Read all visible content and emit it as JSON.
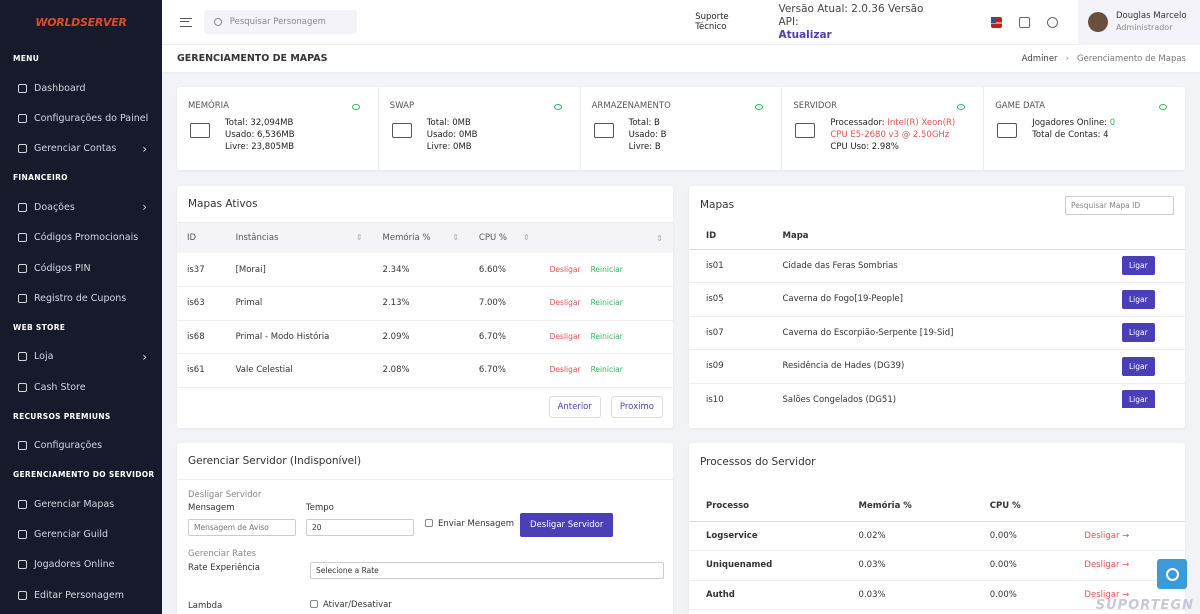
{
  "sidebar": {
    "logo": "WORLDSERVER",
    "sections": [
      {
        "title": "MENU",
        "items": [
          {
            "label": "Dashboard"
          },
          {
            "label": "Configurações do Painel"
          },
          {
            "label": "Gerenciar Contas",
            "submenu": true
          }
        ]
      },
      {
        "title": "FINANCEIRO",
        "items": [
          {
            "label": "Doações",
            "submenu": true
          },
          {
            "label": "Códigos Promocionais"
          },
          {
            "label": "Códigos PIN"
          },
          {
            "label": "Registro de Cupons"
          }
        ]
      },
      {
        "title": "WEB STORE",
        "items": [
          {
            "label": "Loja",
            "submenu": true
          },
          {
            "label": "Cash Store"
          }
        ]
      },
      {
        "title": "RECURSOS PREMIUNS",
        "items": [
          {
            "label": "Configurações"
          }
        ]
      },
      {
        "title": "GERENCIAMENTO DO SERVIDOR",
        "items": [
          {
            "label": "Gerenciar Mapas"
          },
          {
            "label": "Gerenciar Guild"
          },
          {
            "label": "Jogadores Online"
          },
          {
            "label": "Editar Personagem"
          }
        ]
      }
    ]
  },
  "topbar": {
    "search_placeholder": "Pesquisar Personagem",
    "support": "Suporte Técnico",
    "version": "Versão Atual: 2.0.36 Versão API:",
    "update": "Atualizar",
    "user": {
      "name": "Douglas Marcelo",
      "role": "Administrador"
    }
  },
  "page": {
    "title": "GERENCIAMENTO DE MAPAS",
    "breadcrumb": [
      "Adminer",
      "Gerenciamento de Mapas"
    ]
  },
  "stats": [
    {
      "title": "MEMÓRIA",
      "lines": [
        {
          "label": "Total:",
          "value": "32,094MB"
        },
        {
          "label": "Usado:",
          "value": "6,536MB"
        },
        {
          "label": "Livre:",
          "value": "23,805MB"
        }
      ]
    },
    {
      "title": "SWAP",
      "lines": [
        {
          "label": "Total:",
          "value": "0MB"
        },
        {
          "label": "Usado:",
          "value": "0MB"
        },
        {
          "label": "Livre:",
          "value": "0MB"
        }
      ]
    },
    {
      "title": "ARMAZENAMENTO",
      "lines": [
        {
          "label": "Total:",
          "value": "B"
        },
        {
          "label": "Usado:",
          "value": "B"
        },
        {
          "label": "Livre:",
          "value": "B"
        }
      ]
    },
    {
      "title": "SERVIDOR",
      "lines": [
        {
          "label": "Processador:",
          "value": "Intel(R) Xeon(R) CPU E5-2680 v3 @ 2.50GHz",
          "tone": "red"
        },
        {
          "label": "CPU Uso:",
          "value": "2.98%"
        }
      ]
    },
    {
      "title": "GAME DATA",
      "lines": [
        {
          "label": "Jogadores Online:",
          "value": "0",
          "tone": "green"
        },
        {
          "label": "Total de Contas:",
          "value": "4"
        }
      ]
    }
  ],
  "active_maps": {
    "title": "Mapas Ativos",
    "columns": [
      "ID",
      "Instâncias",
      "Memória %",
      "CPU %"
    ],
    "rows": [
      [
        "is37",
        "[Morai]",
        "2.34%",
        "6.60%"
      ],
      [
        "is63",
        "Primal",
        "2.13%",
        "7.00%"
      ],
      [
        "is68",
        "Primal - Modo História",
        "2.09%",
        "6.70%"
      ],
      [
        "is61",
        "Vale Celestial",
        "2.08%",
        "6.70%"
      ]
    ],
    "actions": [
      "Desligar",
      "Reiniciar"
    ],
    "buttons": [
      "Anterior",
      "Proximo"
    ]
  },
  "maps": {
    "title": "Mapas",
    "search_placeholder": "Pesquisar Mapa ID",
    "columns": [
      "ID",
      "Mapa"
    ],
    "rows": [
      [
        "is01",
        "Cidade das Feras Sombrias"
      ],
      [
        "is05",
        "Caverna do Fogo[19-People]"
      ],
      [
        "is07",
        "Caverna do Escorpião-Serpente [19-Sid]"
      ],
      [
        "is09",
        "Residência de Hades (DG39)"
      ],
      [
        "is10",
        "Salões Congelados (DG51)"
      ]
    ],
    "action": "Ligar"
  },
  "server": {
    "title": "Gerenciar Servidor (Indisponível)",
    "shutdown_section": "Desligar Servidor",
    "message_label": "Mensagem",
    "message_placeholder": "Mensagem de Aviso",
    "time_label": "Tempo",
    "time_value": "20",
    "send_label": "Enviar Mensagem",
    "shutdown_button": "Desligar Servidor",
    "rates_section": "Gerenciar Rates",
    "rate_label": "Rate Experiência",
    "rate_placeholder": "Selecione a Rate",
    "lambda_label": "Lambda",
    "toggle_label": "Ativar/Desativar"
  },
  "processes": {
    "title": "Processos do Servidor",
    "columns": [
      "Processo",
      "Memória %",
      "CPU %"
    ],
    "rows": [
      [
        "Logservice",
        "0.02%",
        "0.00%"
      ],
      [
        "Uniquenamed",
        "0.03%",
        "0.00%"
      ],
      [
        "Authd",
        "0.03%",
        "0.00%"
      ]
    ],
    "action": "Desligar"
  },
  "watermark": "SUPORTEGN"
}
